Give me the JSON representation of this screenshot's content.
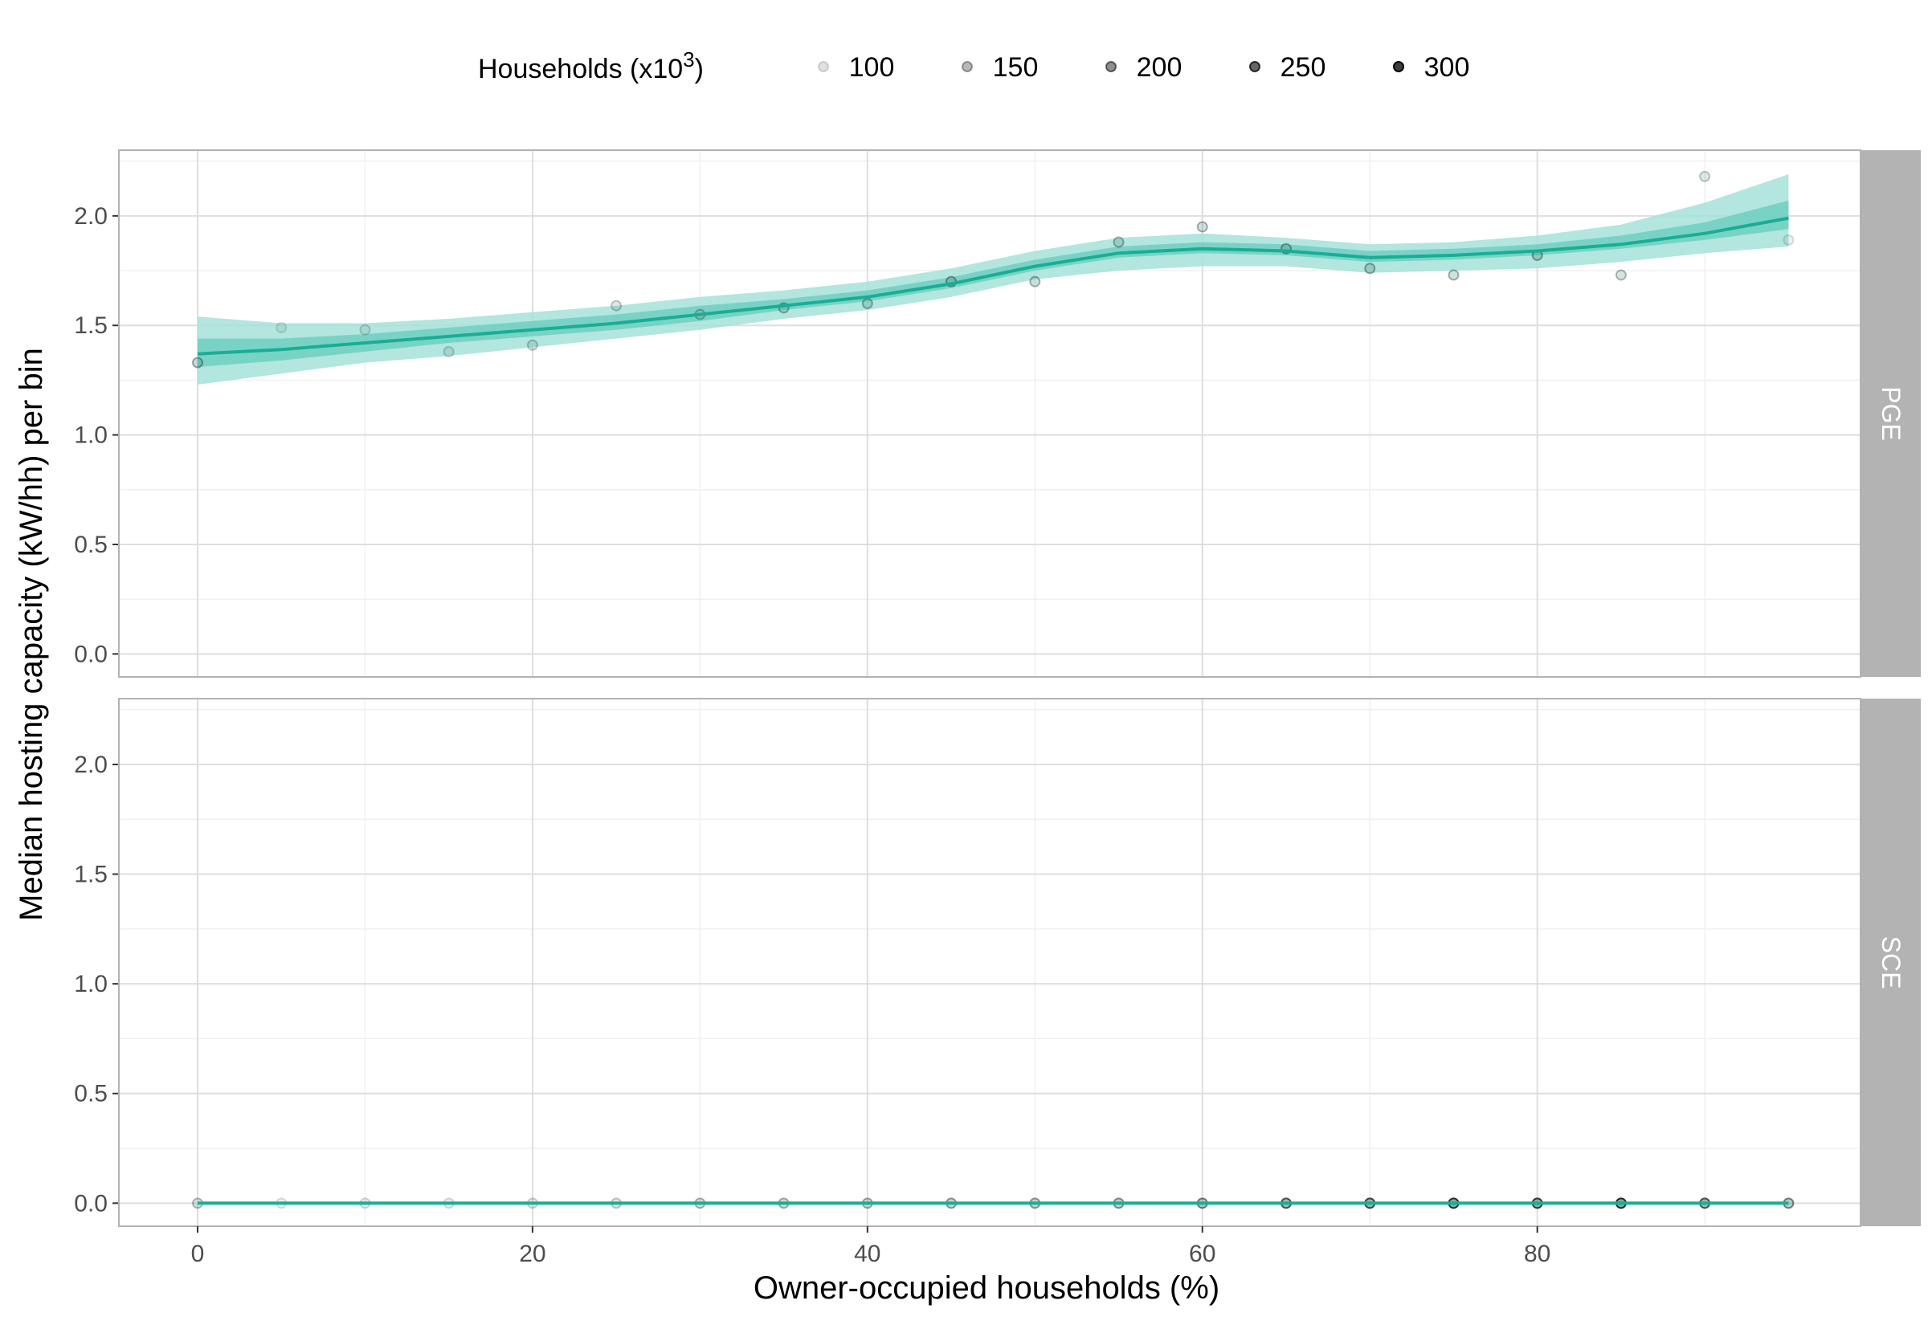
{
  "chart_data": {
    "type": "scatter",
    "xlabel": "Owner-occupied households (%)",
    "ylabel": "Median hosting capacity (kW/hh) per bin",
    "xlim": [
      -4.7,
      99.3
    ],
    "ylim": [
      -0.105,
      2.3
    ],
    "x_ticks": [
      0,
      20,
      40,
      60,
      80
    ],
    "x_tick_labels": [
      "0",
      "20",
      "40",
      "60",
      "80"
    ],
    "y_ticks": [
      0,
      0.5,
      1,
      1.5,
      2
    ],
    "y_tick_labels": [
      "0.0",
      "0.5",
      "1.0",
      "1.5",
      "2.0"
    ],
    "grid": true,
    "legend": {
      "title_main": "Households (x10",
      "title_sup": "3",
      "title_close": ")",
      "position": "top",
      "entries": [
        {
          "label": "100",
          "value": 100
        },
        {
          "label": "150",
          "value": 150
        },
        {
          "label": "200",
          "value": 200
        },
        {
          "label": "250",
          "value": 250
        },
        {
          "label": "300",
          "value": 300
        }
      ]
    },
    "colors": {
      "line": "#1aad96",
      "band_outer": "#a5e2d8",
      "band_inner": "#6fcfbf",
      "strip": "#b3b3b3",
      "point": "#3d8f80"
    },
    "panels": [
      {
        "name": "PGE",
        "points": [
          {
            "x": 0,
            "y": 1.33,
            "n": 160
          },
          {
            "x": 5,
            "y": 1.49,
            "n": 100
          },
          {
            "x": 10,
            "y": 1.48,
            "n": 110
          },
          {
            "x": 15,
            "y": 1.38,
            "n": 115
          },
          {
            "x": 20,
            "y": 1.41,
            "n": 125
          },
          {
            "x": 25,
            "y": 1.59,
            "n": 125
          },
          {
            "x": 30,
            "y": 1.55,
            "n": 135
          },
          {
            "x": 35,
            "y": 1.58,
            "n": 150
          },
          {
            "x": 40,
            "y": 1.6,
            "n": 150
          },
          {
            "x": 45,
            "y": 1.7,
            "n": 165
          },
          {
            "x": 50,
            "y": 1.7,
            "n": 150
          },
          {
            "x": 55,
            "y": 1.88,
            "n": 150
          },
          {
            "x": 60,
            "y": 1.95,
            "n": 150
          },
          {
            "x": 65,
            "y": 1.85,
            "n": 160
          },
          {
            "x": 70,
            "y": 1.76,
            "n": 160
          },
          {
            "x": 75,
            "y": 1.73,
            "n": 150
          },
          {
            "x": 80,
            "y": 1.82,
            "n": 165
          },
          {
            "x": 85,
            "y": 1.73,
            "n": 140
          },
          {
            "x": 90,
            "y": 2.18,
            "n": 125
          },
          {
            "x": 95,
            "y": 1.89,
            "n": 100
          }
        ],
        "fit": {
          "x": [
            0,
            5,
            10,
            15,
            20,
            25,
            30,
            35,
            40,
            45,
            50,
            55,
            60,
            65,
            70,
            75,
            80,
            85,
            90,
            95
          ],
          "y": [
            1.37,
            1.39,
            1.42,
            1.45,
            1.48,
            1.51,
            1.55,
            1.59,
            1.63,
            1.69,
            1.77,
            1.83,
            1.85,
            1.84,
            1.81,
            1.82,
            1.84,
            1.87,
            1.92,
            1.99
          ],
          "outer_lo": [
            1.23,
            1.28,
            1.33,
            1.36,
            1.4,
            1.44,
            1.48,
            1.53,
            1.57,
            1.63,
            1.71,
            1.75,
            1.77,
            1.77,
            1.74,
            1.75,
            1.76,
            1.79,
            1.83,
            1.86
          ],
          "outer_hi": [
            1.54,
            1.51,
            1.51,
            1.53,
            1.56,
            1.59,
            1.63,
            1.66,
            1.7,
            1.76,
            1.84,
            1.9,
            1.92,
            1.9,
            1.87,
            1.88,
            1.91,
            1.96,
            2.06,
            2.19
          ],
          "inner_lo": [
            1.31,
            1.34,
            1.38,
            1.42,
            1.45,
            1.48,
            1.52,
            1.57,
            1.61,
            1.67,
            1.75,
            1.81,
            1.83,
            1.82,
            1.79,
            1.8,
            1.82,
            1.85,
            1.89,
            1.94
          ],
          "inner_hi": [
            1.44,
            1.44,
            1.46,
            1.49,
            1.52,
            1.55,
            1.59,
            1.62,
            1.66,
            1.72,
            1.8,
            1.86,
            1.88,
            1.87,
            1.84,
            1.85,
            1.87,
            1.91,
            1.97,
            2.07
          ]
        }
      },
      {
        "name": "SCE",
        "points": [
          {
            "x": 0,
            "y": 0,
            "n": 140
          },
          {
            "x": 5,
            "y": 0,
            "n": 100
          },
          {
            "x": 10,
            "y": 0,
            "n": 110
          },
          {
            "x": 15,
            "y": 0,
            "n": 105
          },
          {
            "x": 20,
            "y": 0,
            "n": 115
          },
          {
            "x": 25,
            "y": 0,
            "n": 125
          },
          {
            "x": 30,
            "y": 0,
            "n": 150
          },
          {
            "x": 35,
            "y": 0,
            "n": 155
          },
          {
            "x": 40,
            "y": 0,
            "n": 160
          },
          {
            "x": 45,
            "y": 0,
            "n": 175
          },
          {
            "x": 50,
            "y": 0,
            "n": 175
          },
          {
            "x": 55,
            "y": 0,
            "n": 185
          },
          {
            "x": 60,
            "y": 0,
            "n": 205
          },
          {
            "x": 65,
            "y": 0,
            "n": 250
          },
          {
            "x": 70,
            "y": 0,
            "n": 265
          },
          {
            "x": 75,
            "y": 0,
            "n": 295
          },
          {
            "x": 80,
            "y": 0,
            "n": 280
          },
          {
            "x": 85,
            "y": 0,
            "n": 300
          },
          {
            "x": 90,
            "y": 0,
            "n": 250
          },
          {
            "x": 95,
            "y": 0,
            "n": 200
          }
        ],
        "fit": {
          "x": [
            0,
            95
          ],
          "y": [
            0,
            0
          ],
          "outer_lo": [
            0,
            0
          ],
          "outer_hi": [
            0,
            0
          ],
          "inner_lo": [
            0,
            0
          ],
          "inner_hi": [
            0,
            0
          ]
        }
      }
    ]
  }
}
